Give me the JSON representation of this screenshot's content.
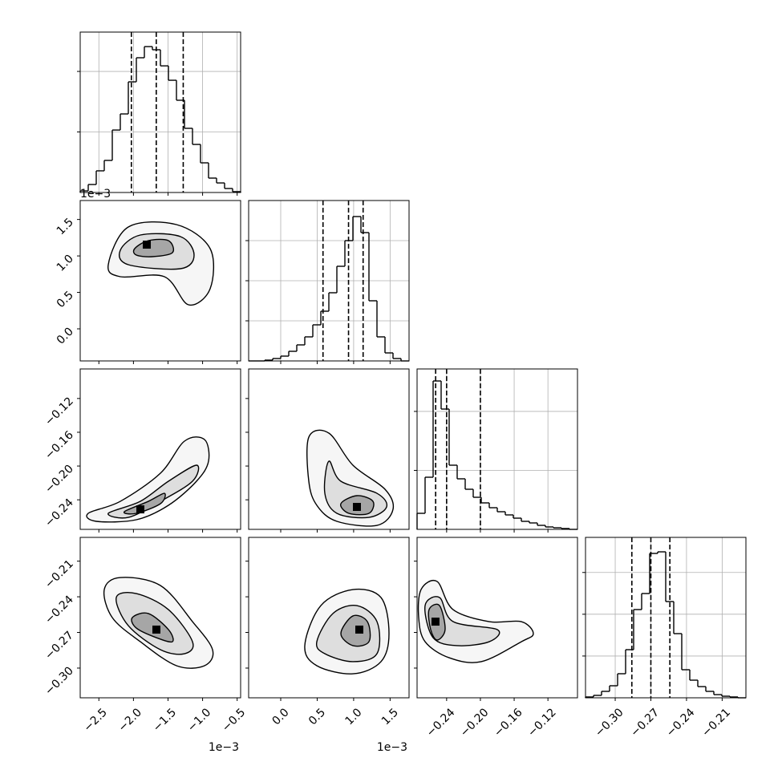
{
  "chart_data": {
    "type": "corner",
    "line_color": "#000000",
    "contour_fills": [
      "#f6f6f6",
      "#dedede",
      "#a6a6a6"
    ],
    "peak_color": "#000000",
    "grid": true,
    "parameters": [
      {
        "lim": [
          -2.77,
          -0.45
        ],
        "offset_label": "1e−3",
        "ticks": [
          {
            "value": -2.5,
            "label": "−2.5"
          },
          {
            "value": -2.0,
            "label": "−2.0"
          },
          {
            "value": -1.5,
            "label": "−1.5"
          },
          {
            "value": -1.0,
            "label": "−1.0"
          },
          {
            "value": -0.5,
            "label": "−0.5"
          }
        ]
      },
      {
        "lim": [
          -0.44,
          1.76
        ],
        "offset_label": "1e−3",
        "ticks": [
          {
            "value": 0.0,
            "label": "0.0"
          },
          {
            "value": 0.5,
            "label": "0.5"
          },
          {
            "value": 1.0,
            "label": "1.0"
          },
          {
            "value": 1.5,
            "label": "1.5"
          }
        ]
      },
      {
        "lim": [
          -0.275,
          -0.085
        ],
        "ticks": [
          {
            "value": -0.24,
            "label": "−0.24"
          },
          {
            "value": -0.2,
            "label": "−0.20"
          },
          {
            "value": -0.16,
            "label": "−0.16"
          },
          {
            "value": -0.12,
            "label": "−0.12"
          }
        ]
      },
      {
        "lim": [
          -0.325,
          -0.19
        ],
        "ticks": [
          {
            "value": -0.3,
            "label": "−0.30"
          },
          {
            "value": -0.27,
            "label": "−0.27"
          },
          {
            "value": -0.24,
            "label": "−0.24"
          },
          {
            "value": -0.21,
            "label": "−0.21"
          }
        ]
      }
    ],
    "histograms": [
      {
        "bins": [
          -2.77,
          -2.654,
          -2.538,
          -2.422,
          -2.306,
          -2.19,
          -2.074,
          -1.958,
          -1.842,
          -1.726,
          -1.61,
          -1.494,
          -1.378,
          -1.262,
          -1.146,
          -1.03,
          -0.914,
          -0.798,
          -0.682,
          -0.566,
          -0.45
        ],
        "counts": [
          13,
          66,
          179,
          265,
          516,
          649,
          914,
          1113,
          1205,
          1179,
          1046,
          927,
          762,
          530,
          397,
          245,
          119,
          79,
          33,
          7
        ],
        "ylim": [
          0,
          1325
        ],
        "yticks": [
          500,
          1000
        ],
        "quantiles": [
          -2.03,
          -1.67,
          -1.28
        ]
      },
      {
        "bins": [
          -0.44,
          -0.33,
          -0.22,
          -0.11,
          0,
          0.11,
          0.22,
          0.33,
          0.44,
          0.55,
          0.66,
          0.77,
          0.88,
          0.99,
          1.1,
          1.21,
          1.32,
          1.43,
          1.54,
          1.65,
          1.76
        ],
        "counts": [
          0,
          0,
          4,
          12,
          24,
          48,
          80,
          120,
          180,
          248,
          340,
          472,
          600,
          720,
          640,
          300,
          120,
          40,
          12,
          0
        ],
        "ylim": [
          0,
          800
        ],
        "yticks": [
          200,
          400,
          600
        ],
        "quantiles": [
          0.58,
          0.93,
          1.13
        ]
      },
      {
        "bins": [
          -0.275,
          -0.2655,
          -0.256,
          -0.2465,
          -0.237,
          -0.2275,
          -0.218,
          -0.2085,
          -0.199,
          -0.1895,
          -0.18,
          -0.1705,
          -0.161,
          -0.1515,
          -0.142,
          -0.1325,
          -0.123,
          -0.1135,
          -0.104,
          -0.0945,
          -0.085
        ],
        "counts": [
          272,
          884,
          2516,
          2040,
          1088,
          857,
          680,
          544,
          449,
          367,
          299,
          245,
          190,
          136,
          109,
          68,
          41,
          27,
          14,
          0
        ],
        "ylim": [
          0,
          2720
        ],
        "yticks": [
          1000,
          2000
        ],
        "quantiles": [
          -0.253,
          -0.24,
          -0.2
        ]
      },
      {
        "bins": [
          -0.325,
          -0.31825,
          -0.3115,
          -0.30475,
          -0.298,
          -0.29125,
          -0.2845,
          -0.27775,
          -0.271,
          -0.26425,
          -0.2575,
          -0.25075,
          -0.244,
          -0.23725,
          -0.2305,
          -0.22375,
          -0.217,
          -0.21025,
          -0.2035,
          -0.19675,
          -0.19
        ],
        "counts": [
          10,
          29,
          77,
          144,
          288,
          576,
          1056,
          1248,
          1728,
          1747,
          1152,
          768,
          336,
          211,
          134,
          77,
          38,
          19,
          10,
          0
        ],
        "ylim": [
          0,
          1920
        ],
        "yticks": [
          500,
          1000,
          1500
        ],
        "quantiles": [
          -0.286,
          -0.27,
          -0.254
        ]
      }
    ],
    "panels": [
      {
        "contours": [
          {
            "x": [
              -2.364,
              -2.074,
              -1.378,
              -0.891,
              -0.891,
              -1.204,
              -1.552,
              -2.19
            ],
            "y": [
              0.88,
              1.397,
              1.43,
              1.1,
              0.55,
              0.33,
              0.715,
              0.715
            ]
          },
          {
            "x": [
              -2.19,
              -1.9,
              -1.32,
              -1.123,
              -1.32,
              -2.074
            ],
            "y": [
              1.078,
              1.287,
              1.265,
              1.012,
              0.825,
              0.88
            ]
          },
          {
            "x": [
              -1.982,
              -1.784,
              -1.494,
              -1.436,
              -1.726,
              -1.958
            ],
            "y": [
              1.1,
              1.21,
              1.21,
              1.045,
              0.99,
              1.012
            ]
          }
        ],
        "peak": {
          "x": -1.807,
          "y": 1.155
        }
      },
      {
        "contours": [
          {
            "x": [
              -2.654,
              -2.19,
              -1.61,
              -1.262,
              -0.972,
              -0.914,
              -1.088,
              -1.494,
              -1.958,
              -2.538
            ],
            "y": [
              -0.256,
              -0.2418,
              -0.2085,
              -0.1705,
              -0.1686,
              -0.1943,
              -0.218,
              -0.2465,
              -0.2636,
              -0.2655
            ]
          },
          {
            "x": [
              -2.364,
              -1.9,
              -1.494,
              -1.088,
              -1.146,
              -1.61,
              -2.074
            ],
            "y": [
              -0.256,
              -0.2418,
              -0.218,
              -0.199,
              -0.218,
              -0.2418,
              -0.2608
            ]
          },
          {
            "x": [
              -2.132,
              -1.784,
              -1.552,
              -1.61,
              -1.958
            ],
            "y": [
              -0.2541,
              -0.2418,
              -0.2323,
              -0.2446,
              -0.256
            ]
          }
        ],
        "peak": {
          "x": -1.9,
          "y": -0.2513
        }
      },
      {
        "contours": [
          {
            "x": [
              0.385,
              0.66,
              0.99,
              1.43,
              1.54,
              1.32,
              0.77,
              0.495,
              0.385
            ],
            "y": [
              -0.1658,
              -0.161,
              -0.199,
              -0.2275,
              -0.2513,
              -0.2703,
              -0.2655,
              -0.2465,
              -0.218
            ]
          },
          {
            "x": [
              0.66,
              0.825,
              1.32,
              1.452,
              1.21,
              0.77,
              0.605
            ],
            "y": [
              -0.1943,
              -0.218,
              -0.2323,
              -0.2484,
              -0.2608,
              -0.256,
              -0.2323
            ]
          },
          {
            "x": [
              0.825,
              1.045,
              1.265,
              1.21,
              0.935
            ],
            "y": [
              -0.2446,
              -0.2351,
              -0.2418,
              -0.256,
              -0.256
            ]
          }
        ],
        "peak": {
          "x": 1.045,
          "y": -0.2484
        }
      },
      {
        "contours": [
          {
            "x": [
              -2.422,
              -2.19,
              -1.61,
              -1.146,
              -0.856,
              -0.972,
              -1.378,
              -1.9,
              -2.306
            ],
            "y": [
              -0.2339,
              -0.2238,
              -0.2305,
              -0.2609,
              -0.2845,
              -0.298,
              -0.298,
              -0.2778,
              -0.2575
            ]
          },
          {
            "x": [
              -2.248,
              -1.958,
              -1.494,
              -1.146,
              -1.262,
              -1.61,
              -2.074
            ],
            "y": [
              -0.2406,
              -0.2373,
              -0.2508,
              -0.2778,
              -0.2879,
              -0.2845,
              -0.2643
            ]
          },
          {
            "x": [
              -2.016,
              -1.784,
              -1.494,
              -1.436,
              -1.668,
              -1.958
            ],
            "y": [
              -0.2575,
              -0.2541,
              -0.2676,
              -0.2778,
              -0.2744,
              -0.2663
            ]
          }
        ],
        "peak": {
          "x": -1.668,
          "y": -0.2676
        }
      },
      {
        "contours": [
          {
            "x": [
              0.33,
              0.55,
              0.99,
              1.375,
              1.485,
              1.375,
              0.99,
              0.495
            ],
            "y": [
              -0.2811,
              -0.2474,
              -0.2339,
              -0.2406,
              -0.271,
              -0.2946,
              -0.3048,
              -0.298
            ]
          },
          {
            "x": [
              0.495,
              0.715,
              1.045,
              1.32,
              1.32,
              0.99,
              0.605
            ],
            "y": [
              -0.2778,
              -0.2541,
              -0.2474,
              -0.2609,
              -0.2879,
              -0.2946,
              -0.2879
            ]
          },
          {
            "x": [
              0.825,
              0.99,
              1.188,
              1.21,
              0.99
            ],
            "y": [
              -0.271,
              -0.2561,
              -0.2609,
              -0.2778,
              -0.2811
            ]
          }
        ],
        "peak": {
          "x": 1.078,
          "y": -0.2676
        }
      },
      {
        "contours": [
          {
            "x": [
              -0.2703,
              -0.2513,
              -0.2323,
              -0.1895,
              -0.1515,
              -0.1373,
              -0.1515,
              -0.199,
              -0.237,
              -0.2655,
              -0.2731
            ],
            "y": [
              -0.2339,
              -0.2271,
              -0.2508,
              -0.2609,
              -0.2609,
              -0.271,
              -0.2778,
              -0.2946,
              -0.2913,
              -0.2778,
              -0.2575
            ]
          },
          {
            "x": [
              -0.2655,
              -0.2484,
              -0.2323,
              -0.18,
              -0.1895,
              -0.2275,
              -0.256
            ],
            "y": [
              -0.2474,
              -0.2406,
              -0.2609,
              -0.2676,
              -0.2778,
              -0.2811,
              -0.2744
            ]
          },
          {
            "x": [
              -0.2608,
              -0.2484,
              -0.2418,
              -0.2513,
              -0.2589
            ],
            "y": [
              -0.2508,
              -0.2474,
              -0.2676,
              -0.2764,
              -0.2676
            ]
          }
        ],
        "peak": {
          "x": -0.2532,
          "y": -0.2609
        }
      }
    ]
  }
}
